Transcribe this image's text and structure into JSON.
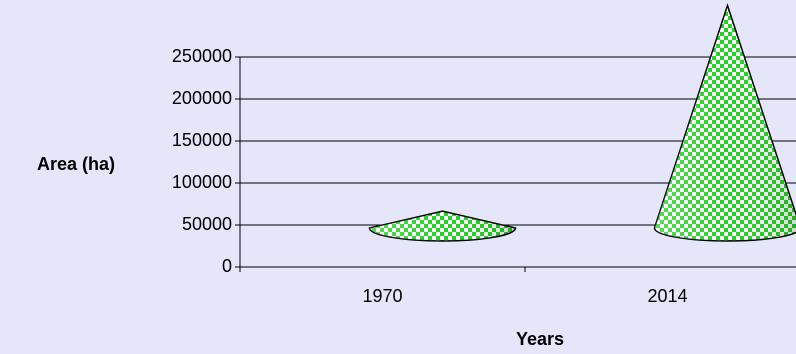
{
  "chart_data": {
    "type": "cone",
    "x_label": "Years",
    "y_label": "Area (ha)",
    "categories": [
      "1970",
      "2014"
    ],
    "values": [
      20000,
      265000
    ],
    "color": "#1ed41e",
    "ylim": [
      0,
      250000
    ],
    "yticks": [
      0,
      50000,
      100000,
      150000,
      200000,
      250000
    ],
    "grid": true
  }
}
